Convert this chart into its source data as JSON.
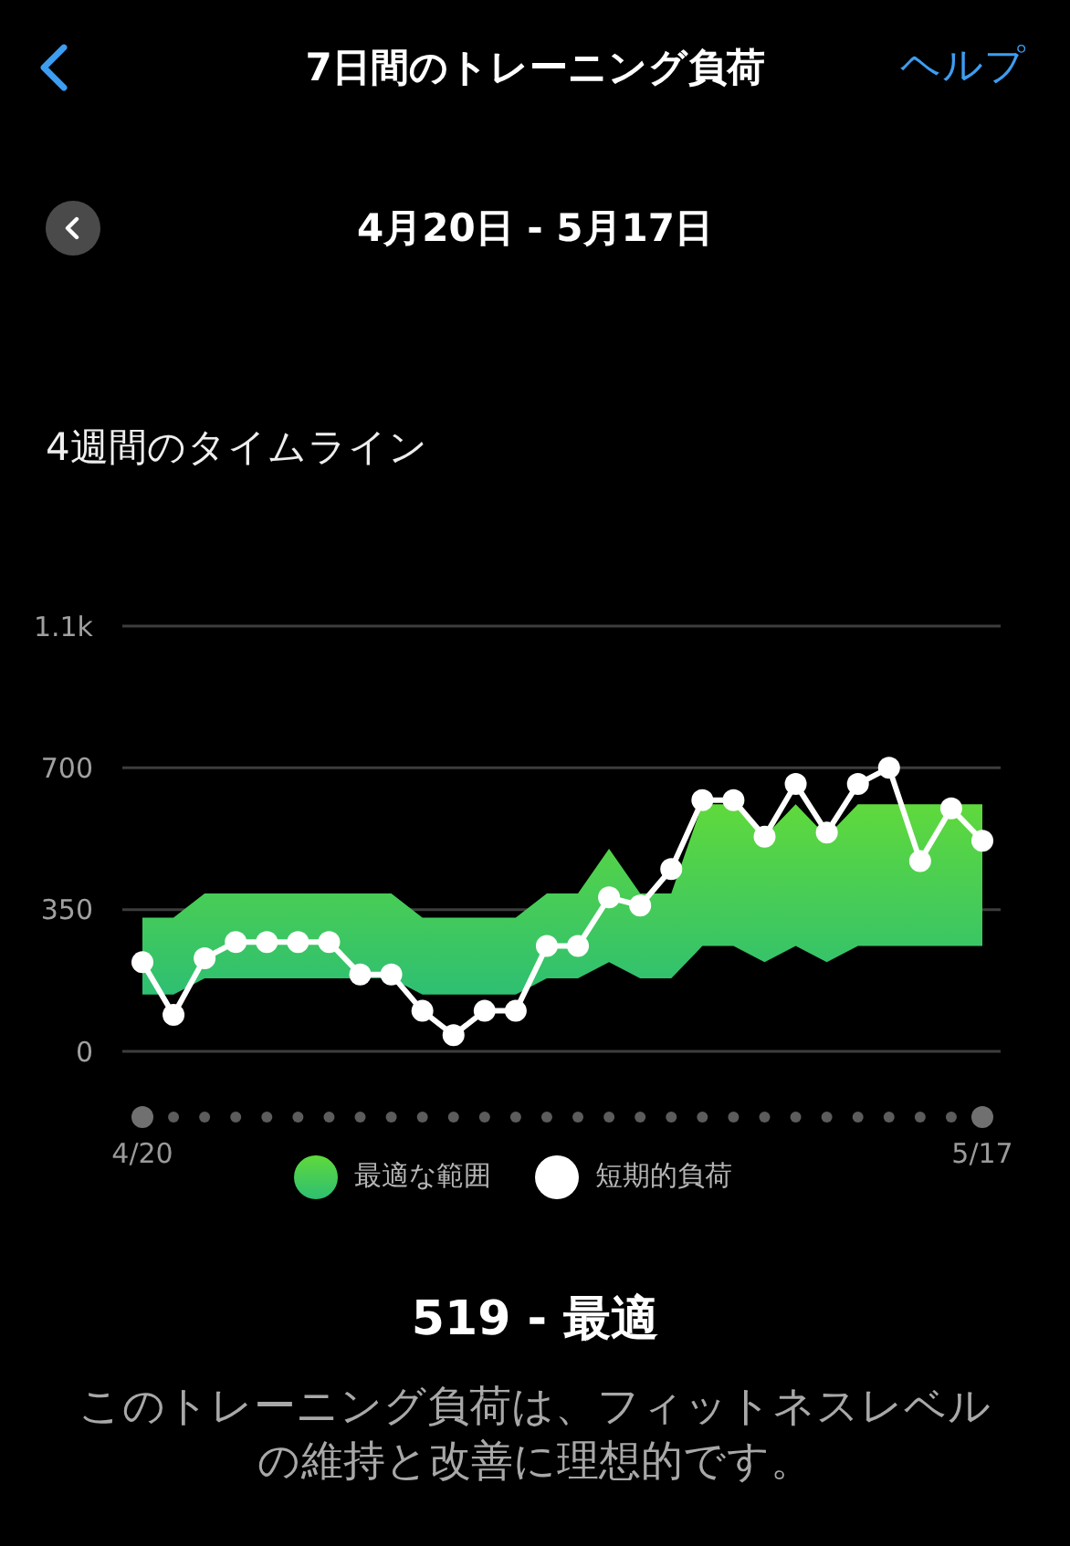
{
  "chart_data": {
    "type": "line",
    "title": "7日間のトレーニング負荷",
    "subtitle": "4月20日 - 5月17日",
    "annotations": [
      "ヘルプ",
      "4週間のタイムライン",
      "519 - 最適",
      "このトレーニング負荷は、フィットネスレベルの維持と改善に理想的です。"
    ],
    "categories": [
      "4/20",
      null,
      null,
      null,
      null,
      null,
      null,
      null,
      null,
      null,
      null,
      null,
      null,
      null,
      null,
      null,
      null,
      null,
      null,
      null,
      null,
      null,
      null,
      null,
      null,
      null,
      null,
      "5/17"
    ],
    "series": [
      {
        "name": "最適な範囲",
        "type": "area",
        "color": "#5fd93c",
        "values": [
          null,
          null,
          null,
          null,
          null,
          null,
          null,
          null,
          null,
          null,
          null,
          null,
          null,
          null,
          null,
          null,
          null,
          null,
          null,
          null,
          null,
          null,
          null,
          null,
          null,
          null,
          null,
          null
        ],
        "lower": [
          140,
          140,
          180,
          180,
          180,
          180,
          180,
          180,
          180,
          140,
          140,
          140,
          140,
          180,
          180,
          220,
          180,
          180,
          260,
          260,
          220,
          260,
          220,
          260,
          260,
          260,
          260,
          260
        ],
        "upper": [
          330,
          330,
          390,
          390,
          390,
          390,
          390,
          390,
          390,
          330,
          330,
          330,
          330,
          390,
          390,
          500,
          390,
          390,
          610,
          610,
          530,
          610,
          530,
          610,
          610,
          610,
          610,
          610
        ]
      },
      {
        "name": "短期的負荷",
        "color": "#ffffff",
        "values": [
          220,
          90,
          230,
          270,
          270,
          270,
          270,
          190,
          190,
          100,
          40,
          100,
          100,
          260,
          260,
          380,
          360,
          450,
          620,
          620,
          530,
          660,
          540,
          660,
          700,
          470,
          600,
          520
        ]
      }
    ],
    "ylim": [
      0,
      1050
    ],
    "yticks": [
      0,
      350,
      700,
      {
        "value": 1050,
        "label": "1.1k"
      }
    ],
    "grid": "y",
    "legend": "bottom",
    "marker": "circle"
  }
}
